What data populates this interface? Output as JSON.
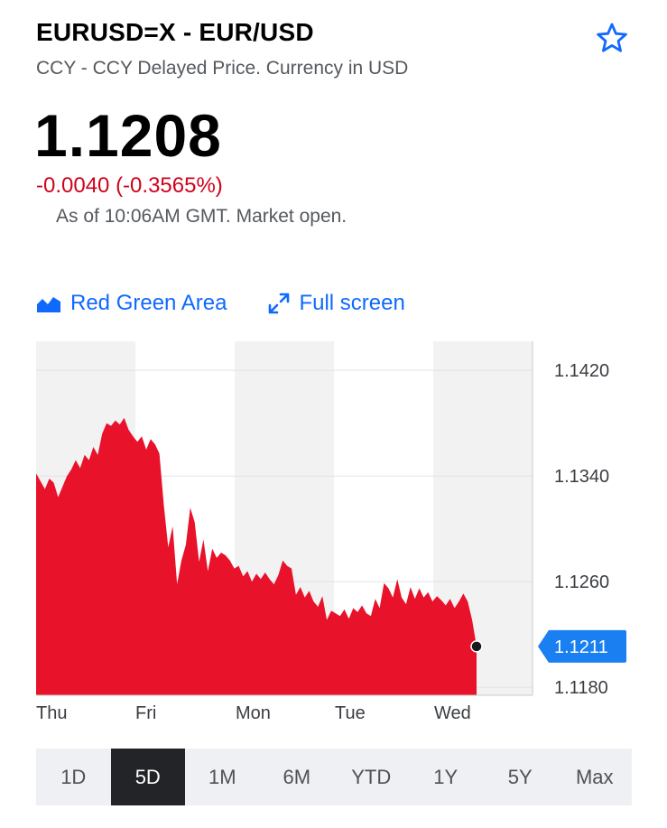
{
  "quote": {
    "title": "EURUSD=X - EUR/USD",
    "subtitle": "CCY - CCY Delayed Price. Currency in USD",
    "price": "1.1208",
    "change": "-0.0040 (-0.3565%)",
    "as_of": "As of 10:06AM GMT. Market open.",
    "star_icon": "star-outline-icon"
  },
  "controls": {
    "chart_type_label": "Red Green Area",
    "chart_type_icon": "area-chart-icon",
    "fullscreen_label": "Full screen",
    "fullscreen_icon": "expand-icon"
  },
  "colors": {
    "accent": "#0f69ff",
    "negative": "#d0021b",
    "area_fill": "#e8122a",
    "current_badge": "#1a7ff0"
  },
  "chart_data": {
    "type": "area",
    "x_labels": [
      "Thu",
      "Fri",
      "Mon",
      "Tue",
      "Wed"
    ],
    "y_ticks": [
      "1.1420",
      "1.1340",
      "1.1260",
      "1.1180"
    ],
    "y_tick_values": [
      1.142,
      1.134,
      1.126,
      1.118
    ],
    "ylim": [
      1.1174,
      1.1442
    ],
    "current_value_label": "1.1211",
    "current_value": 1.1211,
    "values": [
      1.1342,
      1.1336,
      1.133,
      1.1338,
      1.1335,
      1.1324,
      1.1332,
      1.134,
      1.1345,
      1.1352,
      1.1346,
      1.1356,
      1.1352,
      1.1362,
      1.1356,
      1.1372,
      1.138,
      1.1378,
      1.1382,
      1.1379,
      1.1384,
      1.1375,
      1.137,
      1.1366,
      1.137,
      1.136,
      1.1368,
      1.1364,
      1.1357,
      1.1318,
      1.1286,
      1.1302,
      1.1258,
      1.1276,
      1.1288,
      1.1316,
      1.1305,
      1.1275,
      1.1292,
      1.1268,
      1.1285,
      1.1278,
      1.1282,
      1.128,
      1.1276,
      1.127,
      1.1272,
      1.1264,
      1.1268,
      1.126,
      1.1266,
      1.1262,
      1.1267,
      1.1262,
      1.1258,
      1.1265,
      1.1276,
      1.1272,
      1.127,
      1.125,
      1.1256,
      1.1248,
      1.1253,
      1.1245,
      1.1241,
      1.1249,
      1.1231,
      1.1238,
      1.1236,
      1.1234,
      1.1239,
      1.1232,
      1.124,
      1.1237,
      1.1242,
      1.1236,
      1.1234,
      1.1247,
      1.124,
      1.1259,
      1.1255,
      1.1248,
      1.1262,
      1.1248,
      1.1243,
      1.1256,
      1.1247,
      1.1255,
      1.1248,
      1.1252,
      1.1245,
      1.1249,
      1.1246,
      1.1242,
      1.1247,
      1.124,
      1.1245,
      1.1251,
      1.1245,
      1.1231,
      1.1211
    ]
  },
  "ranges": {
    "items": [
      "1D",
      "5D",
      "1M",
      "6M",
      "YTD",
      "1Y",
      "5Y",
      "Max"
    ],
    "active": "5D"
  }
}
